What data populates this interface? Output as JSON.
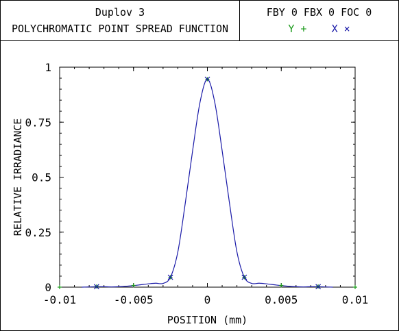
{
  "header": {
    "title": "Duplov 3",
    "subtitle": "POLYCHROMATIC POINT SPREAD FUNCTION",
    "fields": "FBY 0 FBX 0 FOC 0",
    "legend": [
      {
        "label": "Y",
        "marker": "+",
        "color": "#1a9a1a"
      },
      {
        "label": "X",
        "marker": "×",
        "color": "#1a1aa8"
      }
    ]
  },
  "chart_data": {
    "type": "line",
    "title": "Duplov 3",
    "subtitle": "POLYCHROMATIC POINT SPREAD FUNCTION",
    "xlabel": "POSITION (mm)",
    "ylabel": "RELATIVE IRRADIANCE",
    "xlim": [
      -0.01,
      0.01
    ],
    "ylim": [
      0,
      1
    ],
    "xticks": [
      -0.01,
      -0.005,
      0,
      0.005,
      0.01
    ],
    "xtick_labels": [
      "-0.01",
      "-0.005",
      "0",
      "0.005",
      "0.01"
    ],
    "yticks": [
      0,
      0.25,
      0.5,
      0.75,
      1
    ],
    "ytick_labels": [
      "0",
      "0.25",
      "0.5",
      "0.75",
      "1"
    ],
    "grid": false,
    "series": [
      {
        "name": "Y",
        "color": "#1a9a1a",
        "marker": "+",
        "x": [
          -0.01,
          -0.0075,
          -0.005,
          -0.0025,
          0,
          0.0025,
          0.005,
          0.0075,
          0.01
        ],
        "y": [
          0,
          0.003,
          0.008,
          0.045,
          0.945,
          0.045,
          0.008,
          0.003,
          0
        ]
      },
      {
        "name": "X",
        "color": "#1a1aa8",
        "marker": "x",
        "x": [
          -0.0085,
          -0.008,
          -0.0075,
          -0.007,
          -0.0065,
          -0.006,
          -0.0055,
          -0.005,
          -0.0045,
          -0.004,
          -0.0035,
          -0.003,
          -0.0025,
          -0.002,
          -0.0015,
          -0.001,
          -0.0005,
          0,
          0.0005,
          0.001,
          0.0015,
          0.002,
          0.0025,
          0.003,
          0.0035,
          0.004,
          0.0045,
          0.005,
          0.0055,
          0.006,
          0.0065,
          0.007,
          0.0075,
          0.008,
          0.0085
        ],
        "y": [
          0,
          0.001,
          0.002,
          0.002,
          0.001,
          0.002,
          0.004,
          0.007,
          0.011,
          0.015,
          0.018,
          0.017,
          0.045,
          0.16,
          0.38,
          0.62,
          0.84,
          0.945,
          0.84,
          0.62,
          0.38,
          0.16,
          0.045,
          0.017,
          0.018,
          0.015,
          0.011,
          0.007,
          0.004,
          0.002,
          0.001,
          0.002,
          0.002,
          0.001,
          0
        ],
        "marker_x": [
          -0.0075,
          -0.0025,
          0,
          0.0025,
          0.0075
        ],
        "marker_y": [
          0.002,
          0.045,
          0.945,
          0.045,
          0.002
        ]
      }
    ]
  }
}
